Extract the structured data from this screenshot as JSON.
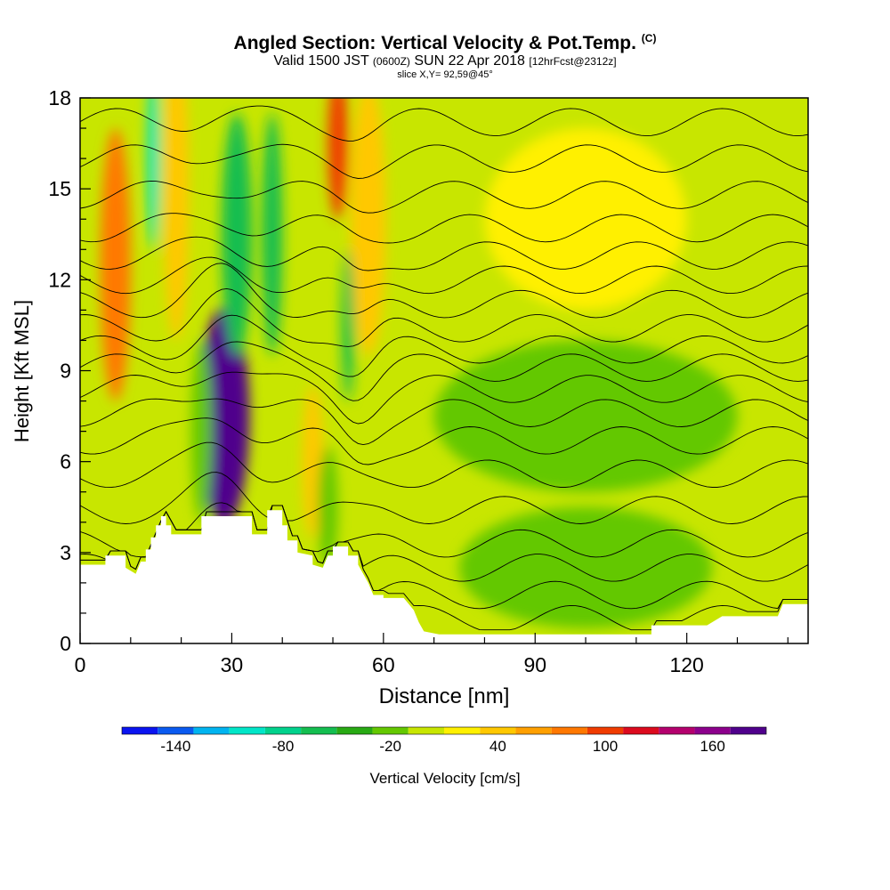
{
  "title": {
    "main": "Angled Section: Vertical Velocity & Pot.Temp.",
    "main_tag": "(C)",
    "valid_a": "Valid 1500 JST",
    "valid_zulu": "(0600Z)",
    "valid_b": "SUN 22 Apr 2018",
    "forecast": "[12hrFcst@2312z]",
    "slice": "slice X,Y= 92,59@45°"
  },
  "chart_data": {
    "type": "heatmap",
    "xlabel": "Distance [nm]",
    "ylabel": "Height [Kft MSL]",
    "xlim": [
      0,
      144
    ],
    "ylim": [
      0,
      18
    ],
    "x_ticks": [
      0,
      30,
      60,
      90,
      120
    ],
    "y_ticks": [
      0,
      3,
      6,
      9,
      12,
      15,
      18
    ],
    "colorbar": {
      "label": "Vertical Velocity [cm/s]",
      "tick_values": [
        -140,
        -80,
        -20,
        40,
        100,
        160
      ],
      "tick_labels": [
        "-140",
        "-80",
        "-20",
        "40",
        "100",
        "160"
      ],
      "range": [
        -170,
        190
      ],
      "colors": [
        "#0a14f0",
        "#0a5af0",
        "#00b4f0",
        "#00e6c8",
        "#00d28c",
        "#14be50",
        "#28aa14",
        "#64c800",
        "#c8e600",
        "#fff000",
        "#ffc800",
        "#ffa000",
        "#ff7800",
        "#f03c00",
        "#dc0a1e",
        "#b4006e",
        "#8c008c",
        "#50008c"
      ]
    },
    "background_color": "#c8e600",
    "terrain": [
      [
        0,
        2.6
      ],
      [
        5,
        2.6
      ],
      [
        5,
        2.9
      ],
      [
        9,
        2.9
      ],
      [
        9,
        2.5
      ],
      [
        11,
        2.3
      ],
      [
        12,
        2.7
      ],
      [
        13,
        2.7
      ],
      [
        13,
        3.1
      ],
      [
        14,
        3.1
      ],
      [
        14,
        3.5
      ],
      [
        15,
        3.5
      ],
      [
        15,
        3.9
      ],
      [
        16,
        3.9
      ],
      [
        16,
        4.2
      ],
      [
        17,
        4.2
      ],
      [
        17,
        3.9
      ],
      [
        18,
        3.9
      ],
      [
        18,
        3.6
      ],
      [
        24,
        3.6
      ],
      [
        24,
        4.2
      ],
      [
        34,
        4.2
      ],
      [
        34,
        3.6
      ],
      [
        37,
        3.6
      ],
      [
        37,
        4.4
      ],
      [
        40,
        4.4
      ],
      [
        40,
        3.9
      ],
      [
        41,
        3.9
      ],
      [
        41,
        3.4
      ],
      [
        43,
        3.4
      ],
      [
        43,
        3.0
      ],
      [
        46,
        2.9
      ],
      [
        46,
        2.6
      ],
      [
        48,
        2.5
      ],
      [
        49,
        2.9
      ],
      [
        50,
        2.9
      ],
      [
        50,
        3.2
      ],
      [
        53,
        3.2
      ],
      [
        53,
        2.9
      ],
      [
        55,
        2.9
      ],
      [
        55,
        2.6
      ],
      [
        56,
        2.3
      ],
      [
        57,
        2.0
      ],
      [
        58,
        1.6
      ],
      [
        60,
        1.6
      ],
      [
        60,
        1.5
      ],
      [
        64,
        1.5
      ],
      [
        66,
        1.1
      ],
      [
        67,
        0.7
      ],
      [
        68,
        0.4
      ],
      [
        71,
        0.3
      ],
      [
        113,
        0.3
      ],
      [
        113,
        0.6
      ],
      [
        124,
        0.6
      ],
      [
        127,
        0.9
      ],
      [
        138,
        0.9
      ],
      [
        139,
        1.3
      ],
      [
        144,
        1.3
      ]
    ],
    "cells": [
      {
        "x": 28.5,
        "y": 7.5,
        "rx": 5,
        "ry": 3.6,
        "w": 170
      },
      {
        "x": 28.5,
        "y": 7.5,
        "rx": 2,
        "ry": 2.2,
        "w": 180
      },
      {
        "x": 7,
        "y": 12.5,
        "rx": 3,
        "ry": 4.5,
        "w": 70
      },
      {
        "x": 19,
        "y": 15,
        "rx": 2.5,
        "ry": 5,
        "w": 40
      },
      {
        "x": 51,
        "y": 16.5,
        "rx": 2,
        "ry": 2.5,
        "w": 95
      },
      {
        "x": 57,
        "y": 14,
        "rx": 3.5,
        "ry": 4.5,
        "w": 40
      },
      {
        "x": 46,
        "y": 6,
        "rx": 2,
        "ry": 2.5,
        "w": 40
      },
      {
        "x": 14.5,
        "y": 16,
        "rx": 1.2,
        "ry": 3,
        "w": -95
      },
      {
        "x": 31,
        "y": 13.5,
        "rx": 3,
        "ry": 4,
        "w": -70
      },
      {
        "x": 38,
        "y": 13.5,
        "rx": 2,
        "ry": 4,
        "w": -60
      },
      {
        "x": 53,
        "y": 10.5,
        "rx": 1.2,
        "ry": 2.5,
        "w": -55
      },
      {
        "x": 24,
        "y": 7,
        "rx": 2,
        "ry": 3,
        "w": -30
      },
      {
        "x": 49,
        "y": 4.5,
        "rx": 2,
        "ry": 2,
        "w": -30
      },
      {
        "x": 100,
        "y": 7.5,
        "rx": 30,
        "ry": 2.5,
        "w": -15
      },
      {
        "x": 100,
        "y": 2.5,
        "rx": 25,
        "ry": 2,
        "w": -20
      },
      {
        "x": 100,
        "y": 14,
        "rx": 20,
        "ry": 3,
        "w": 10
      }
    ],
    "theta_contour_levels": [
      0.8,
      1.6,
      2.5,
      3.3,
      4.4,
      5.6,
      6.7,
      7.6,
      8.4,
      9.1,
      9.7,
      10.4,
      11.2,
      12.0,
      12.8,
      13.7,
      14.8,
      16.0,
      17.2
    ]
  }
}
